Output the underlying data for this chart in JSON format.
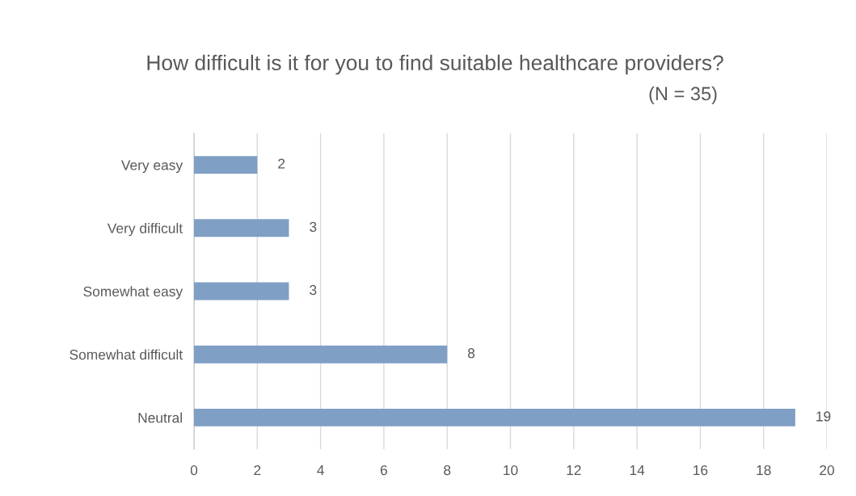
{
  "chart_data": {
    "type": "bar",
    "orientation": "horizontal",
    "title": "How difficult is it for you to find suitable healthcare providers?",
    "subtitle": "(N = 35)",
    "categories": [
      "Very easy",
      "Very difficult",
      "Somewhat easy",
      "Somewhat difficult",
      "Neutral"
    ],
    "values": [
      2,
      3,
      3,
      8,
      19
    ],
    "color": "#7f9fc4",
    "xlim": [
      0,
      20
    ],
    "xticks": [
      0,
      2,
      4,
      6,
      8,
      10,
      12,
      14,
      16,
      18,
      20
    ],
    "grid": "x",
    "data_labels": true,
    "legend": false
  }
}
